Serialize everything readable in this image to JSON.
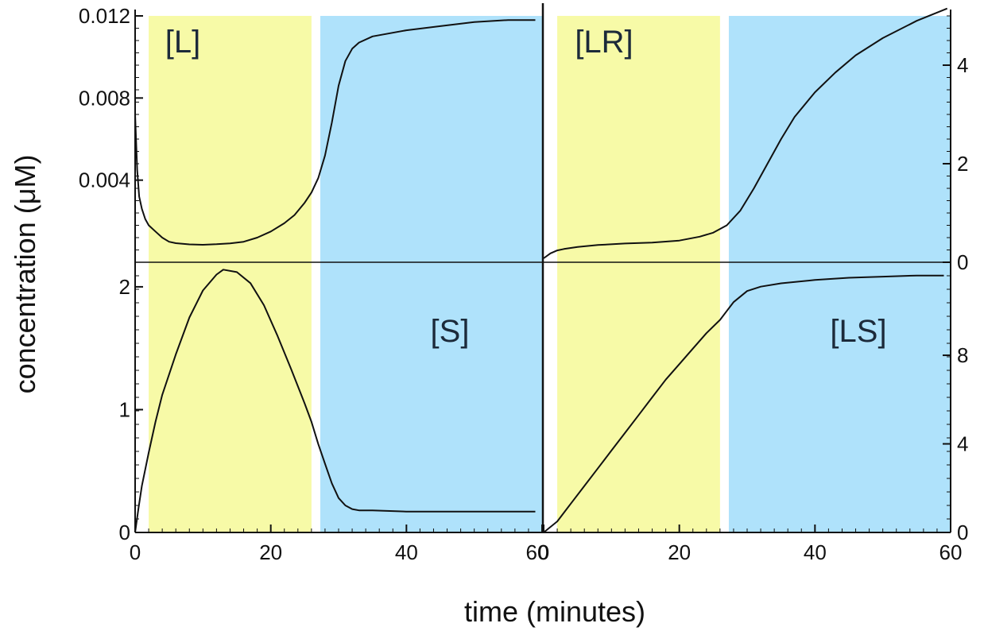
{
  "chart_data": [
    {
      "type": "line",
      "panel": "top-left",
      "label": "[L]",
      "ylim": [
        0,
        0.012
      ],
      "y_ticks": [
        0.004,
        0.008,
        0.012
      ],
      "y_tick_labels": [
        "0.004",
        "0.008",
        "0.012"
      ],
      "xlim": [
        0,
        60
      ],
      "x": [
        0,
        0.3,
        0.6,
        1,
        1.5,
        2,
        3,
        4,
        5,
        6,
        8,
        10,
        12,
        14,
        16,
        18,
        20,
        22,
        23.5,
        25,
        26,
        27,
        28,
        29,
        30,
        31,
        32,
        33,
        35,
        40,
        45,
        50,
        55,
        59
      ],
      "y": [
        0.0072,
        0.0045,
        0.0032,
        0.0026,
        0.0021,
        0.0018,
        0.0015,
        0.0012,
        0.001,
        0.00093,
        0.00087,
        0.00085,
        0.00088,
        0.00092,
        0.001,
        0.0012,
        0.0015,
        0.0019,
        0.0023,
        0.0029,
        0.0034,
        0.0041,
        0.0052,
        0.0068,
        0.0086,
        0.0098,
        0.0104,
        0.0107,
        0.011,
        0.0113,
        0.0115,
        0.0117,
        0.0118,
        0.0118
      ]
    },
    {
      "type": "line",
      "panel": "top-right",
      "label": "[LR]",
      "ylim": [
        0,
        5
      ],
      "y_ticks": [
        0,
        2,
        4
      ],
      "y_tick_labels": [
        "0",
        "2",
        "4"
      ],
      "xlim": [
        0,
        60
      ],
      "x": [
        0,
        1,
        2,
        3,
        5,
        8,
        12,
        16,
        20,
        23,
        25,
        27,
        29,
        31,
        33,
        35,
        37,
        40,
        43,
        46,
        50,
        55,
        59.5
      ],
      "y": [
        0.08,
        0.18,
        0.24,
        0.27,
        0.31,
        0.35,
        0.38,
        0.4,
        0.44,
        0.52,
        0.6,
        0.75,
        1.05,
        1.5,
        2.0,
        2.5,
        2.95,
        3.45,
        3.85,
        4.2,
        4.55,
        4.9,
        5.15
      ]
    },
    {
      "type": "line",
      "panel": "bottom-left",
      "label": "[S]",
      "ylim": [
        0,
        2.2
      ],
      "y_ticks": [
        0,
        1,
        2
      ],
      "y_tick_labels": [
        "0",
        "1",
        "2"
      ],
      "xlim": [
        0,
        60
      ],
      "x": [
        0,
        0.5,
        1,
        2,
        3,
        4,
        6,
        8,
        10,
        12,
        13,
        15,
        17,
        19,
        21,
        23,
        25,
        26,
        27,
        28,
        29,
        30,
        31,
        32,
        33,
        35,
        40,
        45,
        50,
        55,
        59
      ],
      "y": [
        0,
        0.2,
        0.38,
        0.65,
        0.9,
        1.12,
        1.45,
        1.75,
        1.97,
        2.1,
        2.14,
        2.12,
        2.03,
        1.85,
        1.6,
        1.33,
        1.05,
        0.9,
        0.72,
        0.56,
        0.4,
        0.28,
        0.22,
        0.19,
        0.18,
        0.18,
        0.17,
        0.17,
        0.17,
        0.17,
        0.17
      ]
    },
    {
      "type": "line",
      "panel": "bottom-right",
      "label": "[LS]",
      "ylim": [
        0,
        12.2
      ],
      "y_ticks": [
        0,
        4,
        8
      ],
      "y_tick_labels": [
        "0",
        "4",
        "8"
      ],
      "xlim": [
        0,
        60
      ],
      "x": [
        0,
        2,
        4,
        6,
        8,
        10,
        12,
        14,
        16,
        18,
        20,
        22,
        24,
        26,
        27,
        28,
        30,
        32,
        35,
        40,
        45,
        50,
        55,
        59
      ],
      "y": [
        0,
        0.5,
        1.3,
        2.1,
        2.9,
        3.7,
        4.5,
        5.3,
        6.1,
        6.9,
        7.6,
        8.3,
        9.0,
        9.6,
        10.0,
        10.4,
        10.9,
        11.1,
        11.25,
        11.4,
        11.5,
        11.55,
        11.6,
        11.6
      ]
    }
  ],
  "shared": {
    "xlabel": "time (minutes)",
    "ylabel": "concentration (μM)",
    "x_ticks": [
      0,
      20,
      40,
      60
    ],
    "x_tick_labels": [
      "0",
      "20",
      "40",
      "60"
    ],
    "shaded_regions": [
      {
        "from": 2,
        "to": 26,
        "color": "#f7faa7"
      },
      {
        "from": 27.3,
        "to": 60,
        "color": "#afe2fb"
      }
    ],
    "line_color": "#111111"
  }
}
